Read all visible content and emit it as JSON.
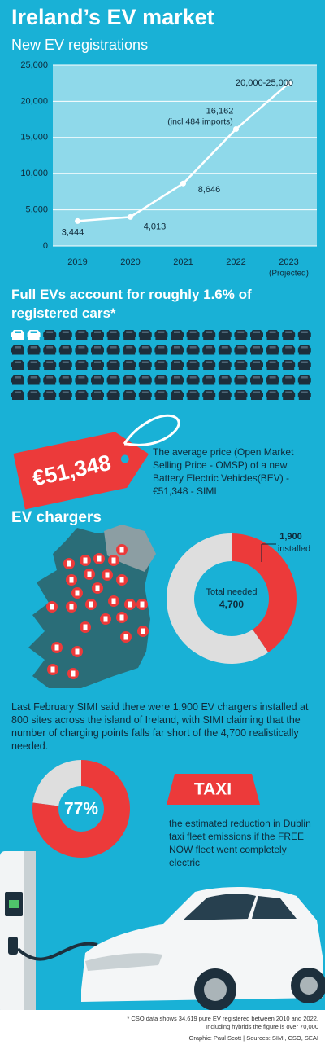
{
  "title": "Ireland’s EV market",
  "chart_data": [
    {
      "type": "line",
      "title": "New EV registrations",
      "categories": [
        "2019",
        "2020",
        "2021",
        "2022",
        "2023"
      ],
      "values": [
        3444,
        4013,
        8646,
        16162,
        22500
      ],
      "value_labels": [
        "3,444",
        "4,013",
        "8,646",
        "16,162",
        "20,000-25,000"
      ],
      "annotations": [
        "(incl 484 imports)",
        "(Projected)"
      ],
      "color": "#ffffff",
      "ylim": [
        0,
        25000
      ],
      "yticks": [
        0,
        {
          "value": 5000,
          "label": "5,000"
        },
        {
          "value": 10000,
          "label": "10,000"
        },
        {
          "value": 15000,
          "label": "15,000"
        },
        {
          "value": 20000,
          "label": "20,000"
        },
        {
          "value": 25000,
          "label": "25,000"
        }
      ],
      "grid": true
    },
    {
      "type": "donut",
      "title": "EV chargers",
      "categories": [
        "installed"
      ],
      "values": [
        1900
      ],
      "value_labels": [
        "1,900"
      ],
      "total": {
        "value": 4700,
        "label": "4,700"
      },
      "center_title": "Total needed",
      "color": "#ec3a3a",
      "rest_color": "#dedede"
    },
    {
      "type": "donut",
      "values": [
        77
      ],
      "value_labels": [
        "77%"
      ],
      "color": "#ec3a3a",
      "rest_color": "#dedede"
    }
  ],
  "car_share": {
    "heading": "Full EVs account for roughly 1.6% of registered cars*",
    "highlighted": 2,
    "total": 95
  },
  "price": {
    "tag": "€51,348",
    "description": "The average price (Open Market Selling Price - OMSP) of a new Battery Electric Vehicles(BEV) - €51,348 - SIMI"
  },
  "chargers_text": "Last February SIMI said there were 1,900 EV chargers installed at 800 sites across the island of Ireland, with SIMI claiming that the number of charging points falls far short of the 4,700 realistically needed.",
  "taxi": {
    "sign": "TAXI",
    "description": "the estimated reduction in Dublin taxi fleet emissions if the FREE NOW fleet went completely electric"
  },
  "footnote": "* CSO data shows 34,619 pure EV registered between 2010 and 2022. Including hybrids the figure is over 70,000",
  "credit": "Graphic: Paul Scott | Sources: SIMI, CSO, SEAI"
}
